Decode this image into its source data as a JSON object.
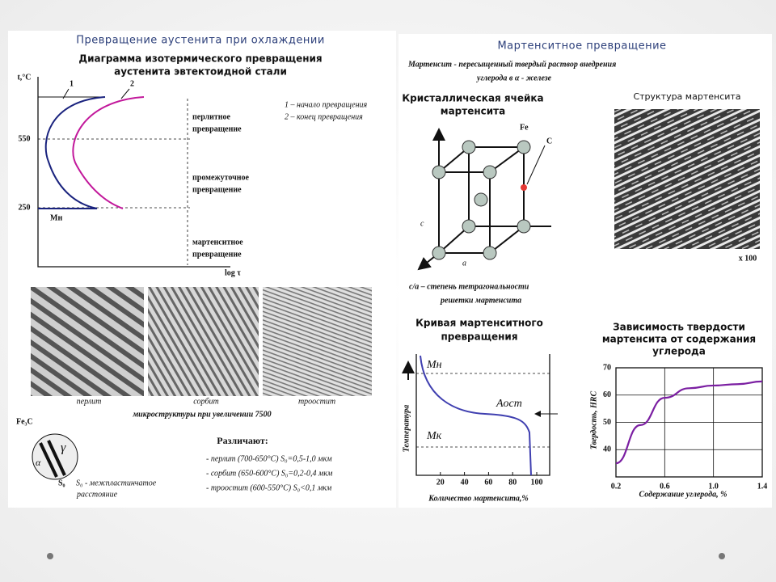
{
  "left": {
    "title": "Превращение аустенита при охлаждении",
    "diagram_title": [
      "Диаграмма изотермического превращения",
      "аустенита эвтектоидной стали"
    ],
    "y_axis_label": "t,°C",
    "y_labels": [
      "550",
      "250"
    ],
    "x_axis_label": "log τ",
    "curve_labels": [
      "1",
      "2"
    ],
    "ms_label": "Mн",
    "legend": [
      "1 – начало превращения",
      "2 – конец превращения"
    ],
    "zones": [
      [
        "перлитное",
        "превращение"
      ],
      [
        "промежуточное",
        "превращение"
      ],
      [
        "мартенситное",
        "превращение"
      ]
    ],
    "micro_captions": [
      "перлит",
      "сорбит",
      "троостит"
    ],
    "micro_title": "микроструктуры при увеличении 7500",
    "distinguish_title": "Различают:",
    "distinguish_items": [
      "- перлит (700-650°С) S₀=0,5-1,0 мкм",
      "- сорбит (650-600°С) S₀=0,2-0,4 мкм",
      "- троостит (600-550°С) S₀<0,1 мкм"
    ],
    "sketch_labels": [
      "Fe₃C",
      "γ",
      "α",
      "S₀"
    ],
    "sketch_note": [
      "S₀ - межпластинчатое",
      "расстояние"
    ]
  },
  "right": {
    "title": "Мартенситное превращение",
    "definition": [
      "Мартенсит - пересыщенный твердый раствор внедрения",
      "углерода в α - железе"
    ],
    "cell_title": [
      "Кристаллическая ячейка",
      "мартенсита"
    ],
    "cell_labels": [
      "Fe",
      "C",
      "c",
      "a"
    ],
    "ratio": [
      "c/a – степень тетрагональности",
      "решетки мартенсита"
    ],
    "structure_title": "Структура мартенсита",
    "magnification": "x 100",
    "curve": {
      "title": [
        "Кривая мартенситного",
        "превращения"
      ],
      "labels": [
        "Mн",
        "Aост",
        "Mк"
      ],
      "y_label": "Температура",
      "x_label": "Количество мартенсита,%",
      "xlim": [
        0,
        100
      ],
      "xticks": [
        20,
        40,
        60,
        80,
        100
      ]
    },
    "hardness": {
      "title": [
        "Зависимость твердости",
        "мартенсита от содержания",
        "углерода"
      ],
      "y_label": "Твердость, HRC",
      "x_label": "Содержание углерода, %",
      "xlim": [
        0.2,
        1.4
      ],
      "ylim": [
        30,
        70
      ],
      "xticks": [
        0.2,
        0.6,
        {
          "value": 1,
          "label": "1.0"
        },
        1.4
      ],
      "yticks": [
        40,
        50,
        60,
        70
      ],
      "color": "#7b1fa2",
      "x": [
        0.2,
        0.4,
        0.6,
        0.8,
        1.0,
        1.2,
        1.4
      ],
      "y": [
        35,
        49,
        59,
        62.5,
        63.5,
        64,
        65
      ]
    }
  }
}
